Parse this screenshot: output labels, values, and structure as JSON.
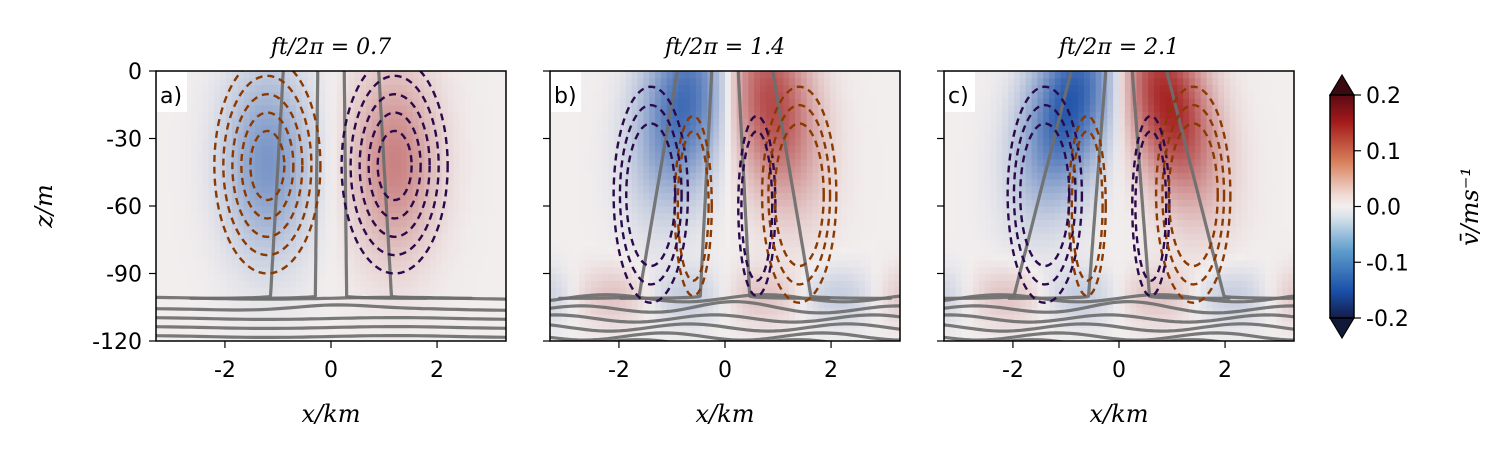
{
  "chart_data": {
    "type": "heatmap",
    "panels": [
      {
        "letter": "a)",
        "title": "ft/2π = 0.7",
        "ft_over_2pi": 0.7,
        "blue_center": [
          -1.2,
          -40
        ],
        "red_center": [
          1.2,
          -40
        ],
        "blue_strength": 0.1,
        "red_strength": 0.09,
        "tilt": 0.0
      },
      {
        "letter": "b)",
        "title": "ft/2π = 1.4",
        "ft_over_2pi": 1.4,
        "blue_center": [
          -0.7,
          -15
        ],
        "red_center": [
          0.8,
          -15
        ],
        "blue_strength": 0.16,
        "red_strength": 0.15,
        "tilt": 0.6
      },
      {
        "letter": "c)",
        "title": "ft/2π = 2.1",
        "ft_over_2pi": 2.1,
        "blue_center": [
          -0.8,
          -15
        ],
        "red_center": [
          0.8,
          -15
        ],
        "blue_strength": 0.19,
        "red_strength": 0.19,
        "tilt": 0.9
      }
    ],
    "xlabel": "x/km",
    "ylabel": "z/m",
    "xlim": [
      -3.3,
      3.3
    ],
    "ylim": [
      -120,
      0
    ],
    "xticks": [
      -2,
      0,
      2
    ],
    "xtick_labels": [
      "-2",
      "0",
      "2"
    ],
    "yticks": [
      0,
      -30,
      -60,
      -90,
      -120
    ],
    "ytick_labels": [
      "0",
      "-30",
      "-60",
      "-90",
      "-120"
    ],
    "colorbar": {
      "label": "v̄/ms⁻¹",
      "range": [
        -0.2,
        0.2
      ],
      "ticks": [
        0.2,
        0.1,
        0.0,
        -0.1,
        -0.2
      ],
      "tick_labels": [
        "0.2",
        "0.1",
        "0.0",
        "-0.1",
        "-0.2"
      ],
      "extend": "both"
    },
    "colors": {
      "negative": "#1a4fa8",
      "positive": "#a31a1a",
      "neutral": "#f2eeee",
      "solid_contour": "#6e6e6e",
      "dashed_positive": "#8a3a00",
      "dashed_negative": "#2a0a4a"
    }
  }
}
